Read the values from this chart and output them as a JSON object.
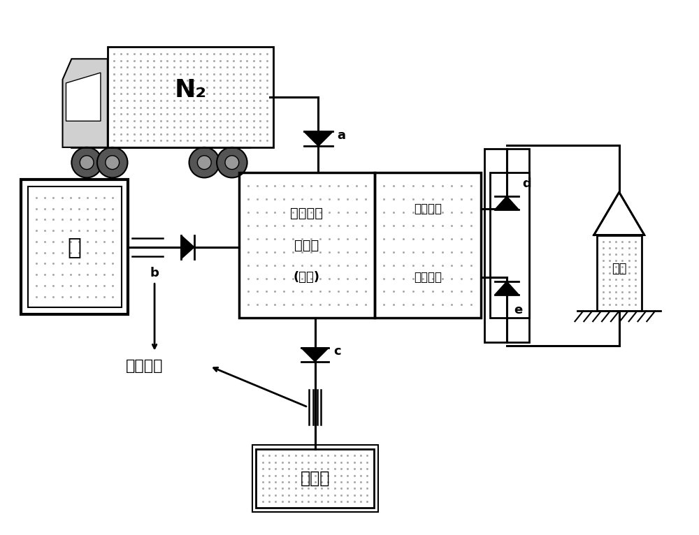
{
  "bg_color": "#ffffff",
  "fig_width": 10.0,
  "fig_height": 7.66,
  "labels": {
    "N2": "N₂",
    "water": "水",
    "device_line1": "脌动一体",
    "device_line2": "化装置",
    "device_line3": "(简图)",
    "atomize_out": "雾化出口",
    "normal_out": "正常出口",
    "chemical": "化学剂",
    "wellhead": "井口",
    "high_pressure": "高压泵组",
    "a": "a",
    "b": "b",
    "c": "c",
    "d": "d",
    "e": "e"
  }
}
